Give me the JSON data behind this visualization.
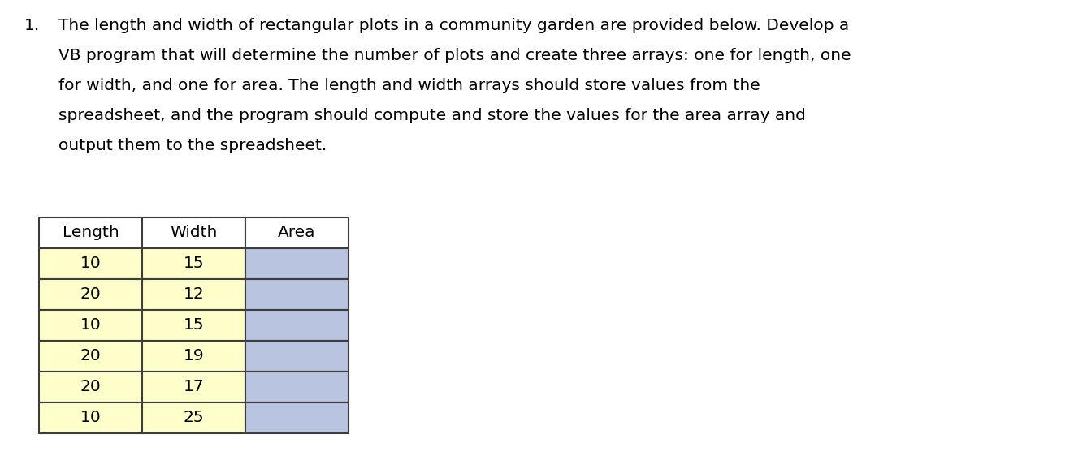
{
  "title_number": "1.",
  "paragraph_lines": [
    "The length and width of rectangular plots in a community garden are provided below. Develop a",
    "VB program that will determine the number of plots and create three arrays: one for length, one",
    "for width, and one for area. The length and width arrays should store values from the",
    "spreadsheet, and the program should compute and store the values for the area array and",
    "output them to the spreadsheet."
  ],
  "headers": [
    "Length",
    "Width",
    "Area"
  ],
  "lengths": [
    10,
    20,
    10,
    20,
    20,
    10
  ],
  "widths": [
    15,
    12,
    15,
    19,
    17,
    25
  ],
  "header_bg": "#ffffff",
  "length_width_bg": "#ffffcc",
  "area_bg": "#b8c4e0",
  "border_color": "#3d3d3d",
  "text_color": "#000000",
  "background_color": "#ffffff",
  "font_size_text": 14.5,
  "font_size_table": 14.5,
  "fig_width": 13.22,
  "fig_height": 5.62,
  "dpi": 100
}
